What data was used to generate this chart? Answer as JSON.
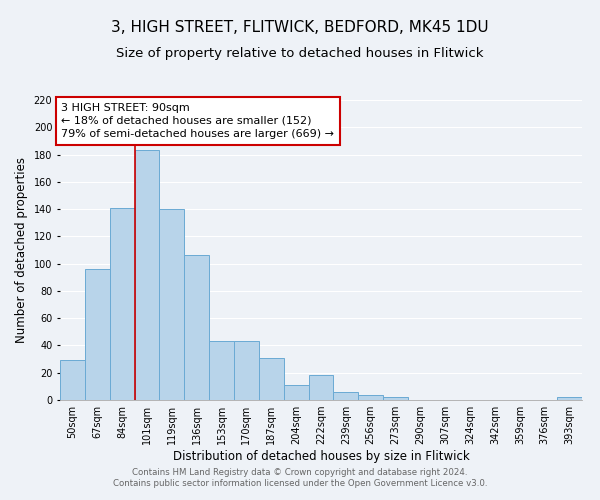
{
  "title": "3, HIGH STREET, FLITWICK, BEDFORD, MK45 1DU",
  "subtitle": "Size of property relative to detached houses in Flitwick",
  "xlabel": "Distribution of detached houses by size in Flitwick",
  "ylabel": "Number of detached properties",
  "footer_line1": "Contains HM Land Registry data © Crown copyright and database right 2024.",
  "footer_line2": "Contains public sector information licensed under the Open Government Licence v3.0.",
  "bar_labels": [
    "50sqm",
    "67sqm",
    "84sqm",
    "101sqm",
    "119sqm",
    "136sqm",
    "153sqm",
    "170sqm",
    "187sqm",
    "204sqm",
    "222sqm",
    "239sqm",
    "256sqm",
    "273sqm",
    "290sqm",
    "307sqm",
    "324sqm",
    "342sqm",
    "359sqm",
    "376sqm",
    "393sqm"
  ],
  "bar_values": [
    29,
    96,
    141,
    183,
    140,
    106,
    43,
    43,
    31,
    11,
    18,
    6,
    4,
    2,
    0,
    0,
    0,
    0,
    0,
    0,
    2
  ],
  "bar_color": "#b8d4ea",
  "bar_edge_color": "#6aaad4",
  "annotation_text": "3 HIGH STREET: 90sqm\n← 18% of detached houses are smaller (152)\n79% of semi-detached houses are larger (669) →",
  "annotation_box_color": "#ffffff",
  "annotation_box_edge": "#cc0000",
  "vline_x_index": 2.5,
  "vline_color": "#cc0000",
  "ylim": [
    0,
    220
  ],
  "yticks": [
    0,
    20,
    40,
    60,
    80,
    100,
    120,
    140,
    160,
    180,
    200,
    220
  ],
  "background_color": "#eef2f7",
  "grid_color": "#ffffff",
  "title_fontsize": 11,
  "subtitle_fontsize": 9.5,
  "tick_fontsize": 7,
  "ylabel_fontsize": 8.5,
  "xlabel_fontsize": 8.5,
  "annotation_fontsize": 8,
  "footer_fontsize": 6.2,
  "footer_color": "#666666"
}
